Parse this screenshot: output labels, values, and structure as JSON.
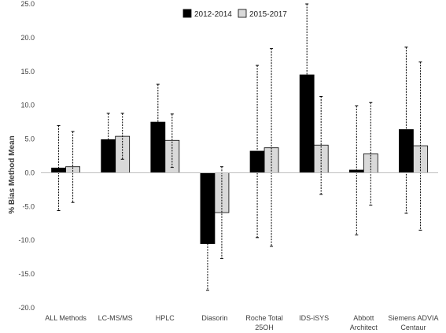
{
  "chart_data": {
    "type": "bar",
    "title": "",
    "xlabel": "",
    "ylabel": "% Bias Method Mean",
    "ylim": [
      -20,
      25
    ],
    "yticks": [
      "25.0",
      "20.0",
      "15.0",
      "10.0",
      "5.0",
      "0.0",
      "-5.0",
      "-10.0",
      "-15.0",
      "-20.0"
    ],
    "ytick_values": [
      25,
      20,
      15,
      10,
      5,
      0,
      -5,
      -10,
      -15,
      -20
    ],
    "grid": false,
    "legend_position": "top-center",
    "categories": [
      [
        "ALL Methods"
      ],
      [
        "LC-MS/MS"
      ],
      [
        "HPLC"
      ],
      [
        "Diasorin"
      ],
      [
        "Roche Total",
        "25OH"
      ],
      [
        "IDS-iSYS"
      ],
      [
        "Abbott",
        "Architect"
      ],
      [
        "Siemens ADVIA",
        "Centaur"
      ]
    ],
    "series": [
      {
        "name": "2012-2014",
        "color": "#000000",
        "values": [
          0.7,
          4.9,
          7.5,
          -10.5,
          3.2,
          14.5,
          0.4,
          6.4
        ],
        "error_low": [
          -5.6,
          1.0,
          1.9,
          -17.4,
          -9.6,
          4.0,
          -9.2,
          -6.0
        ],
        "error_high": [
          7.0,
          8.8,
          13.1,
          -10.5,
          15.9,
          25.0,
          9.9,
          18.6
        ]
      },
      {
        "name": "2015-2017",
        "color": "#d9d9d9",
        "values": [
          0.9,
          5.4,
          4.8,
          -5.9,
          3.7,
          4.1,
          2.8,
          4.0
        ],
        "error_low": [
          -4.4,
          2.0,
          0.8,
          -12.7,
          -10.9,
          -3.2,
          -4.8,
          -8.5
        ],
        "error_high": [
          6.1,
          8.8,
          8.7,
          0.9,
          18.4,
          11.3,
          10.4,
          16.4
        ]
      }
    ]
  }
}
